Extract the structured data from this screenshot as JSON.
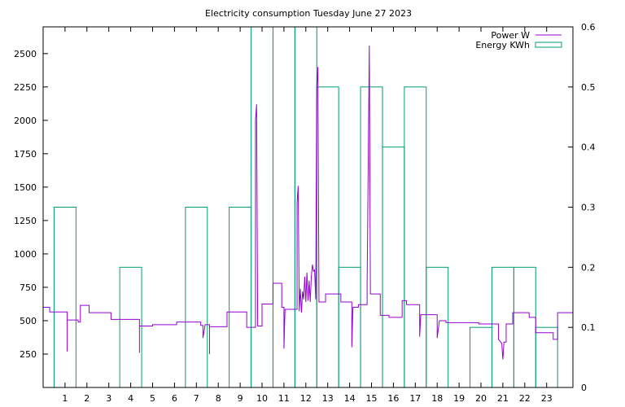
{
  "chart_data": {
    "type": "line",
    "title": "Electricity consumption Tuesday June 27 2023",
    "x_ticks": [
      "1",
      "2",
      "3",
      "4",
      "5",
      "6",
      "7",
      "8",
      "9",
      "10",
      "11",
      "12",
      "13",
      "14",
      "15",
      "16",
      "17",
      "18",
      "19",
      "20",
      "21",
      "22",
      "23"
    ],
    "xlim": [
      -1,
      23.2
    ],
    "y_left": {
      "lim": [
        0,
        2700
      ],
      "ticks": [
        250,
        500,
        750,
        1000,
        1250,
        1500,
        1750,
        2000,
        2250,
        2500
      ]
    },
    "y_right": {
      "lim": [
        0,
        0.6
      ],
      "ticks": [
        "0",
        "0.1",
        "0.2",
        "0.3",
        "0.4",
        "0.5",
        "0.6"
      ]
    },
    "grid": false,
    "legend_position": "top-right",
    "series": [
      {
        "name": "Power W",
        "axis": "left",
        "color": "#9400d3",
        "points": [
          [
            -1,
            600
          ],
          [
            -0.7,
            600
          ],
          [
            -0.7,
            565
          ],
          [
            0.1,
            565
          ],
          [
            0.1,
            270
          ],
          [
            0.1,
            505
          ],
          [
            0.6,
            505
          ],
          [
            0.6,
            490
          ],
          [
            0.7,
            490
          ],
          [
            0.7,
            615
          ],
          [
            1.1,
            615
          ],
          [
            1.1,
            560
          ],
          [
            2.1,
            560
          ],
          [
            2.1,
            510
          ],
          [
            3.4,
            510
          ],
          [
            3.4,
            260
          ],
          [
            3.4,
            460
          ],
          [
            4.0,
            460
          ],
          [
            4.0,
            470
          ],
          [
            5.1,
            470
          ],
          [
            5.1,
            490
          ],
          [
            6.2,
            490
          ],
          [
            6.2,
            465
          ],
          [
            6.3,
            465
          ],
          [
            6.3,
            370
          ],
          [
            6.4,
            470
          ],
          [
            6.6,
            470
          ],
          [
            6.6,
            250
          ],
          [
            6.6,
            455
          ],
          [
            7.4,
            455
          ],
          [
            7.4,
            565
          ],
          [
            8.3,
            565
          ],
          [
            8.3,
            450
          ],
          [
            8.7,
            450
          ],
          [
            8.7,
            2000
          ],
          [
            8.75,
            2120
          ],
          [
            8.8,
            460
          ],
          [
            9.0,
            460
          ],
          [
            9.0,
            625
          ],
          [
            9.5,
            625
          ],
          [
            9.5,
            780
          ],
          [
            9.9,
            780
          ],
          [
            9.9,
            600
          ],
          [
            10.0,
            600
          ],
          [
            10.0,
            290
          ],
          [
            10.05,
            585
          ],
          [
            10.6,
            585
          ],
          [
            10.6,
            1380
          ],
          [
            10.65,
            1510
          ],
          [
            10.7,
            570
          ],
          [
            10.75,
            740
          ],
          [
            10.8,
            560
          ],
          [
            10.85,
            720
          ],
          [
            10.9,
            660
          ],
          [
            10.95,
            830
          ],
          [
            11.0,
            640
          ],
          [
            11.05,
            860
          ],
          [
            11.1,
            650
          ],
          [
            11.15,
            800
          ],
          [
            11.2,
            640
          ],
          [
            11.25,
            830
          ],
          [
            11.3,
            920
          ],
          [
            11.35,
            870
          ],
          [
            11.4,
            880
          ],
          [
            11.45,
            660
          ],
          [
            11.5,
            2250
          ],
          [
            11.55,
            2400
          ],
          [
            11.6,
            640
          ],
          [
            11.9,
            640
          ],
          [
            11.9,
            700
          ],
          [
            12.6,
            700
          ],
          [
            12.6,
            640
          ],
          [
            13.1,
            640
          ],
          [
            13.1,
            300
          ],
          [
            13.15,
            600
          ],
          [
            13.4,
            600
          ],
          [
            13.4,
            620
          ],
          [
            13.8,
            620
          ],
          [
            13.8,
            770
          ],
          [
            13.9,
            2560
          ],
          [
            13.95,
            700
          ],
          [
            14.4,
            700
          ],
          [
            14.4,
            540
          ],
          [
            14.8,
            540
          ],
          [
            14.8,
            525
          ],
          [
            15.4,
            525
          ],
          [
            15.4,
            650
          ],
          [
            15.6,
            650
          ],
          [
            15.6,
            620
          ],
          [
            16.2,
            620
          ],
          [
            16.2,
            380
          ],
          [
            16.25,
            545
          ],
          [
            17.0,
            545
          ],
          [
            17.0,
            370
          ],
          [
            17.1,
            500
          ],
          [
            17.4,
            500
          ],
          [
            17.4,
            485
          ],
          [
            18.9,
            485
          ],
          [
            18.9,
            475
          ],
          [
            19.8,
            475
          ],
          [
            19.8,
            360
          ],
          [
            19.95,
            330
          ],
          [
            20.0,
            210
          ],
          [
            20.05,
            340
          ],
          [
            20.15,
            340
          ],
          [
            20.15,
            475
          ],
          [
            20.45,
            475
          ],
          [
            20.45,
            560
          ],
          [
            21.2,
            560
          ],
          [
            21.2,
            525
          ],
          [
            21.5,
            525
          ],
          [
            21.5,
            410
          ],
          [
            22.3,
            410
          ],
          [
            22.3,
            360
          ],
          [
            22.5,
            360
          ],
          [
            22.5,
            560
          ],
          [
            23.2,
            560
          ]
        ]
      },
      {
        "name": "Energy KWh",
        "axis": "right",
        "color": "#009e73",
        "bars": [
          {
            "hour": 0,
            "value": 0.3
          },
          {
            "hour": 3,
            "value": 0.2
          },
          {
            "hour": 6,
            "value": 0.3
          },
          {
            "hour": 8,
            "value": 0.3
          },
          {
            "hour": 9,
            "value": 0.6
          },
          {
            "hour": 10,
            "value": 0.6
          },
          {
            "hour": 11,
            "value": 0.6
          },
          {
            "hour": 12,
            "value": 0.5
          },
          {
            "hour": 13,
            "value": 0.2
          },
          {
            "hour": 14,
            "value": 0.5
          },
          {
            "hour": 15,
            "value": 0.4
          },
          {
            "hour": 16,
            "value": 0.5
          },
          {
            "hour": 17,
            "value": 0.2
          },
          {
            "hour": 19,
            "value": 0.1
          },
          {
            "hour": 20,
            "value": 0.2
          },
          {
            "hour": 21,
            "value": 0.2
          },
          {
            "hour": 22,
            "value": 0.1
          }
        ]
      }
    ]
  }
}
